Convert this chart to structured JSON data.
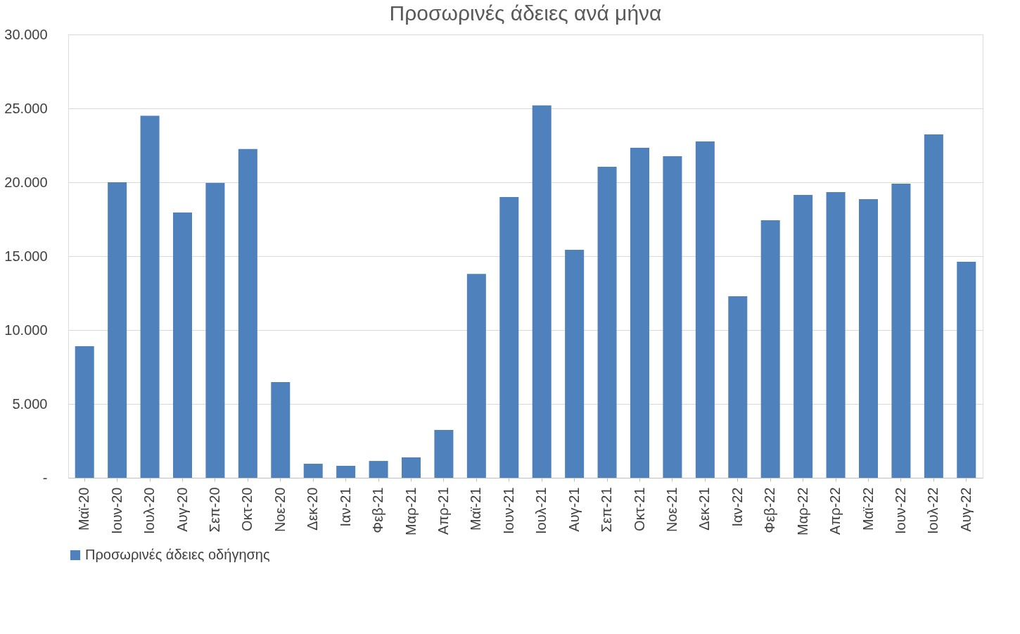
{
  "chart_data": {
    "type": "bar",
    "title": "Προσωρινές άδειες ανά μήνα",
    "categories": [
      "Μαϊ-20",
      "Ιουν-20",
      "Ιουλ-20",
      "Αυγ-20",
      "Σεπ-20",
      "Οκτ-20",
      "Νοε-20",
      "Δεκ-20",
      "Ιαν-21",
      "Φεβ-21",
      "Μαρ-21",
      "Απρ-21",
      "Μαϊ-21",
      "Ιουν-21",
      "Ιουλ-21",
      "Αυγ-21",
      "Σεπ-21",
      "Οκτ-21",
      "Νοε-21",
      "Δεκ-21",
      "Ιαν-22",
      "Φεβ-22",
      "Μαρ-22",
      "Απρ-22",
      "Μαϊ-22",
      "Ιουν-22",
      "Ιουλ-22",
      "Αυγ-22"
    ],
    "series": [
      {
        "name": "Προσωρινές άδειες οδήγησης",
        "color": "#4f81bd",
        "values": [
          8900,
          20000,
          24500,
          17950,
          19950,
          22250,
          6480,
          950,
          810,
          1140,
          1380,
          3240,
          13800,
          19000,
          25200,
          15430,
          21050,
          22330,
          21760,
          22760,
          12290,
          17430,
          19140,
          19330,
          18860,
          19900,
          23240,
          14620
        ]
      }
    ],
    "ylim": [
      0,
      30000
    ],
    "yticks": [
      {
        "value": 0,
        "label": "-"
      },
      {
        "value": 5000,
        "label": "5.000"
      },
      {
        "value": 10000,
        "label": "10.000"
      },
      {
        "value": 15000,
        "label": "15.000"
      },
      {
        "value": 20000,
        "label": "20.000"
      },
      {
        "value": 25000,
        "label": "25.000"
      },
      {
        "value": 30000,
        "label": "30.000"
      }
    ],
    "grid": "y",
    "legend": "bottom"
  }
}
